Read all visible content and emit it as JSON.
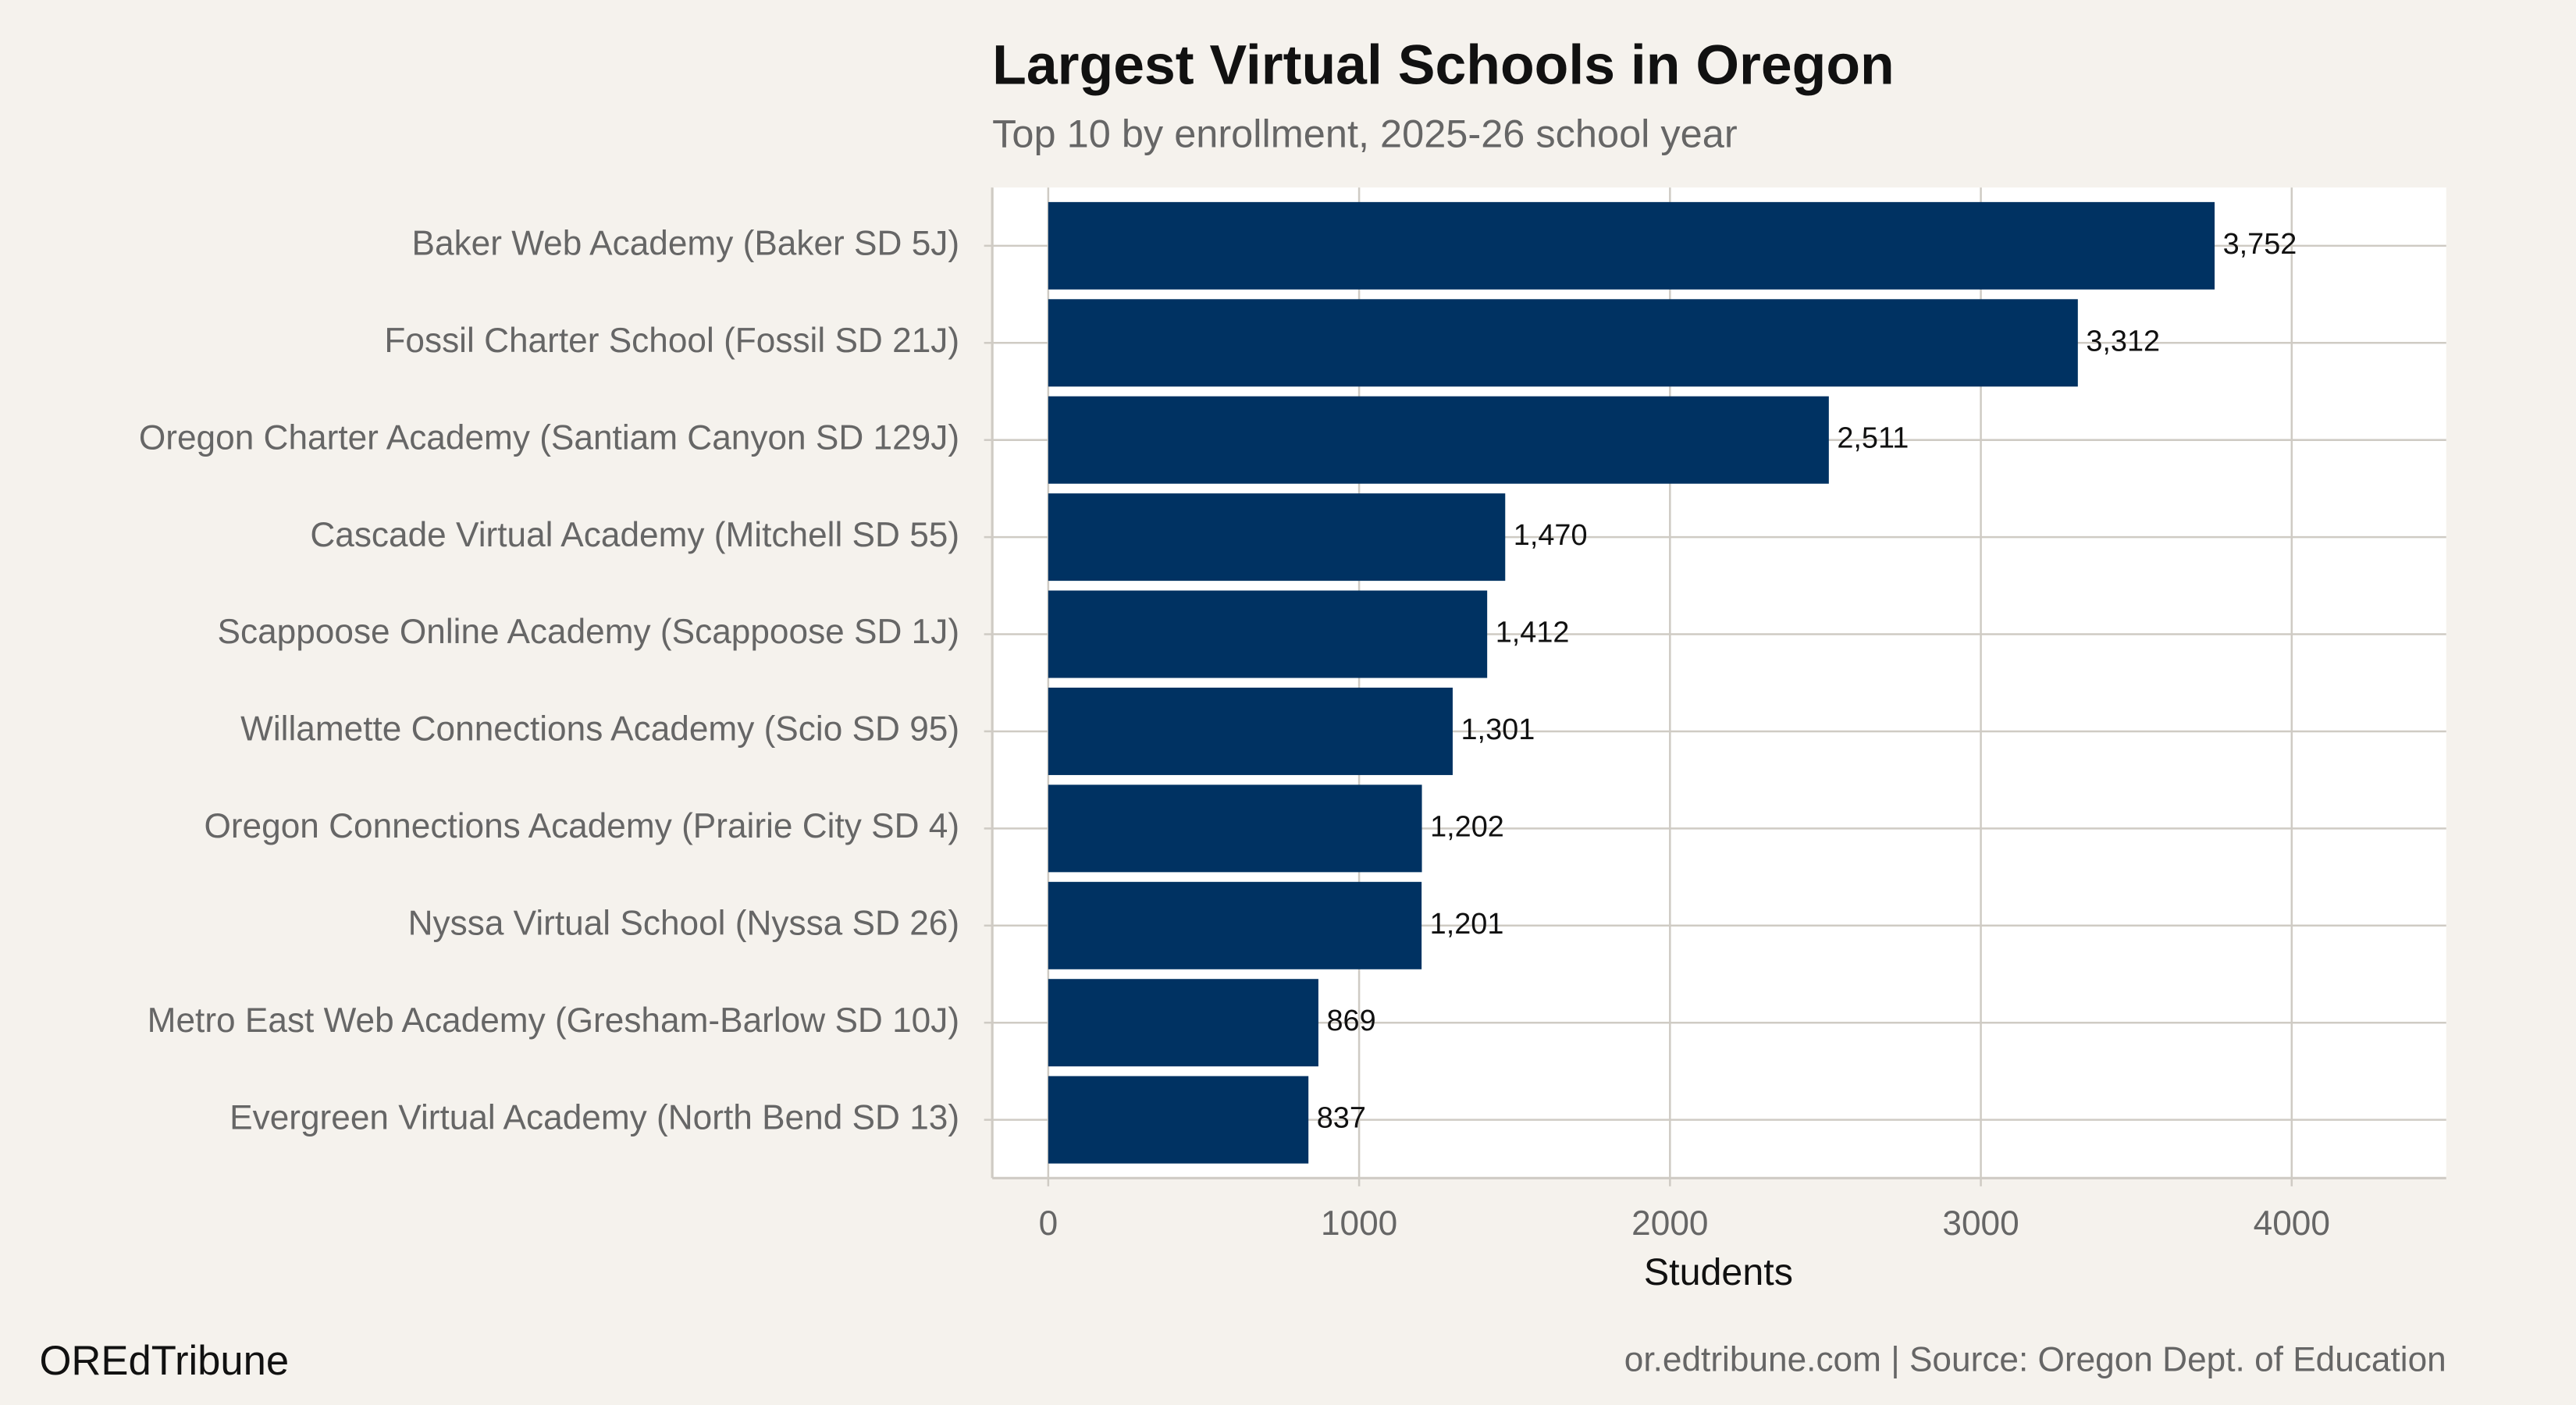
{
  "chart_data": {
    "type": "bar",
    "orientation": "horizontal",
    "title": "Largest Virtual Schools in Oregon",
    "subtitle": "Top 10 by enrollment, 2025-26 school year",
    "x_label": "Students",
    "categories": [
      "Baker Web Academy (Baker SD 5J)",
      "Fossil Charter School (Fossil SD 21J)",
      "Oregon Charter Academy (Santiam Canyon SD 129J)",
      "Cascade Virtual Academy (Mitchell SD 55)",
      "Scappoose Online Academy (Scappoose SD 1J)",
      "Willamette Connections Academy (Scio SD 95)",
      "Oregon Connections Academy (Prairie City SD 4)",
      "Nyssa Virtual School (Nyssa SD 26)",
      "Metro East Web Academy (Gresham-Barlow SD 10J)",
      "Evergreen Virtual Academy (North Bend SD 13)"
    ],
    "values": [
      3752,
      3312,
      2511,
      1470,
      1412,
      1301,
      1202,
      1201,
      869,
      837
    ],
    "value_labels": [
      "3,752",
      "3,312",
      "2,511",
      "1,470",
      "1,412",
      "1,301",
      "1,202",
      "1,201",
      "869",
      "837"
    ],
    "color": "#003262",
    "xlim": [
      -180,
      4497
    ],
    "xticks": [
      0,
      1000,
      2000,
      3000,
      4000
    ],
    "grid": true,
    "credit": "OREdTribune",
    "source": "or.edtribune.com | Source: Oregon Dept. of Education"
  }
}
